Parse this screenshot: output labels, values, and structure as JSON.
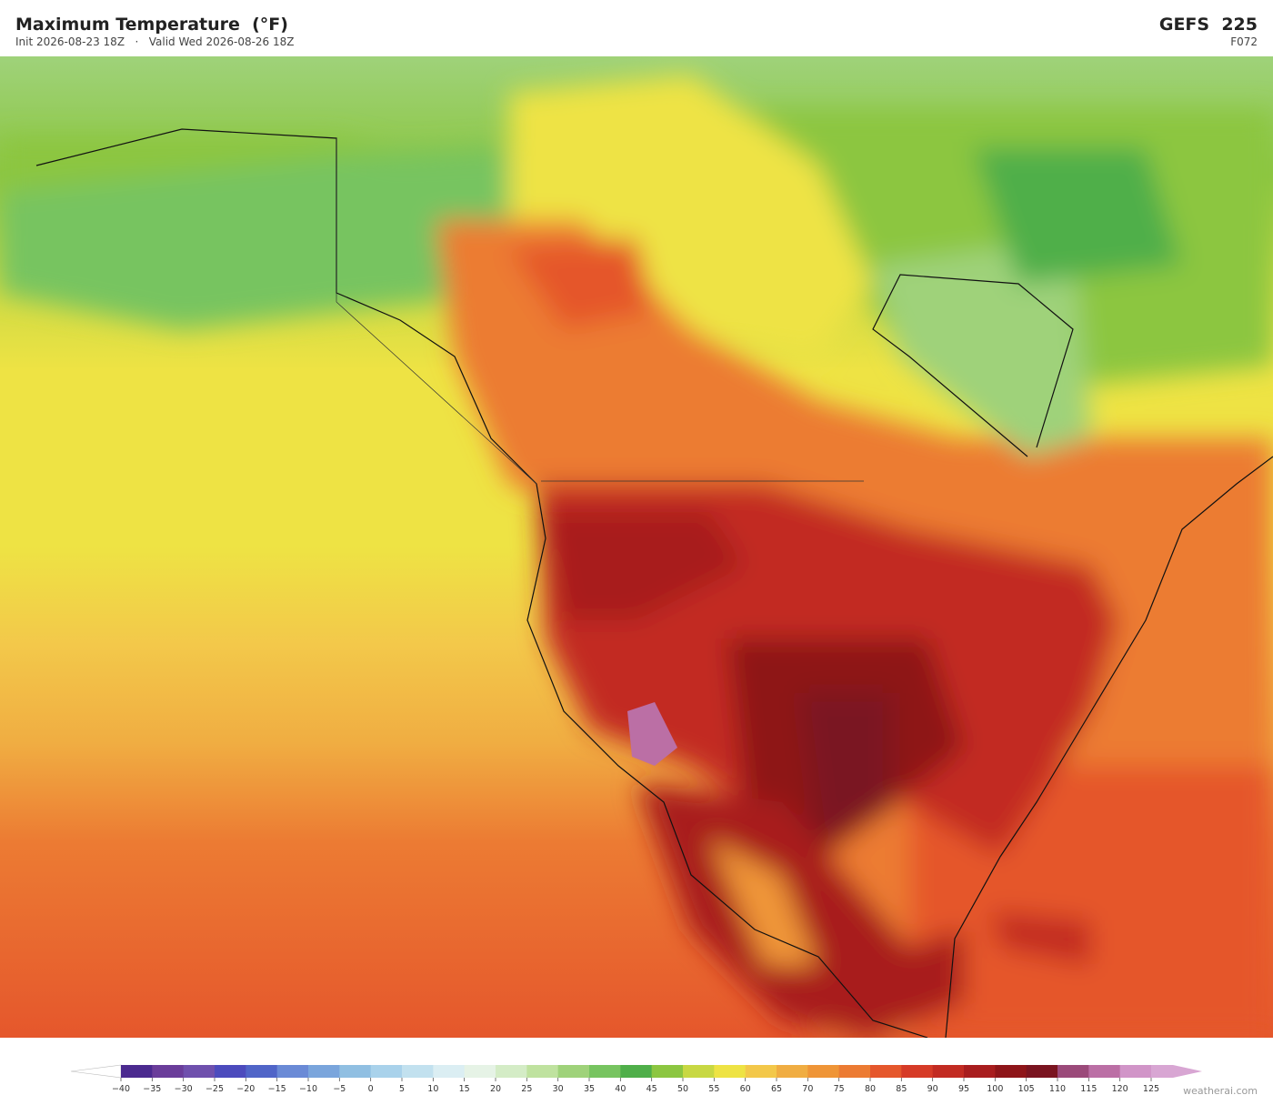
{
  "header": {
    "title": "Maximum Temperature  (°F)",
    "subtitle": "Init 2026-08-23 18Z   ·   Valid Wed 2026-08-26 18Z",
    "model": "GEFS  225",
    "forecast_hour": "F072"
  },
  "colorbar": {
    "ticks": [
      {
        "value": -40,
        "label": "−40"
      },
      {
        "value": -35,
        "label": "−35"
      },
      {
        "value": -30,
        "label": "−30"
      },
      {
        "value": -25,
        "label": "−25"
      },
      {
        "value": -20,
        "label": "−20"
      },
      {
        "value": -15,
        "label": "−15"
      },
      {
        "value": -10,
        "label": "−10"
      },
      {
        "value": -5,
        "label": "−5"
      },
      0,
      5,
      10,
      15,
      20,
      25,
      30,
      35,
      40,
      45,
      50,
      55,
      60,
      65,
      70,
      75,
      80,
      85,
      90,
      95,
      100,
      105,
      110,
      115,
      120,
      125
    ],
    "colors": [
      "#4b2a8f",
      "#6a3d9a",
      "#6f50ad",
      "#4c4bbd",
      "#5065c8",
      "#6a8ad6",
      "#7aa5dc",
      "#90bfe2",
      "#a9d2eb",
      "#c2e1ef",
      "#dbeef3",
      "#e6f3e6",
      "#d4ecc6",
      "#bfe29f",
      "#9fd27a",
      "#77c460",
      "#4faf4a",
      "#8cc641",
      "#c8d843",
      "#eee344",
      "#f3c84a",
      "#f0ad42",
      "#ef9537",
      "#ec7b33",
      "#e5572c",
      "#d63b27",
      "#c22b22",
      "#a81d1e",
      "#8e1519",
      "#7a1420",
      "#9b4a7a",
      "#bb6fa5",
      "#d195c8"
    ],
    "under_color": "#ffffff",
    "over_color": "#d8a6d3"
  },
  "footer": {
    "credit": "weatherai.com"
  }
}
